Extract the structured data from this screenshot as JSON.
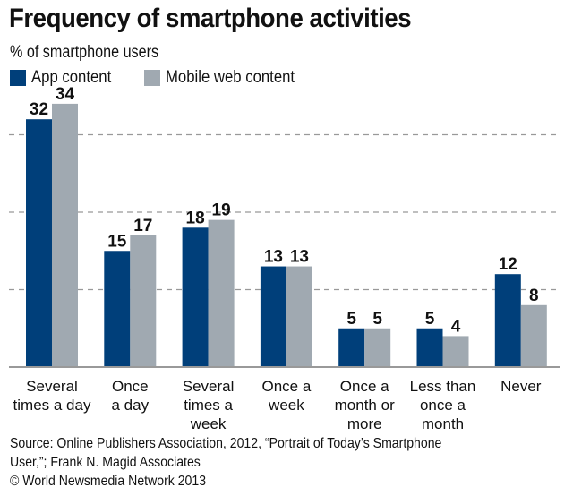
{
  "chart_data": {
    "type": "bar",
    "title": "Frequency of smartphone activities",
    "subtitle": "% of smartphone users",
    "xlabel": "",
    "ylabel": "% of smartphone users",
    "ylim": [
      0,
      40
    ],
    "gridlines": [
      10,
      20,
      30
    ],
    "grid": true,
    "legend_position": "top-left",
    "categories": [
      [
        "Several",
        "times a day"
      ],
      [
        "Once",
        "a day"
      ],
      [
        "Several",
        "times a",
        "week"
      ],
      [
        "Once a",
        "week"
      ],
      [
        "Once a",
        "month or",
        "more"
      ],
      [
        "Less than",
        "once a",
        "month"
      ],
      [
        "Never"
      ]
    ],
    "series": [
      {
        "name": "App content",
        "color": "#003f7a",
        "values": [
          32,
          15,
          18,
          13,
          5,
          5,
          12
        ]
      },
      {
        "name": "Mobile web content",
        "color": "#a0a9b1",
        "values": [
          34,
          17,
          19,
          13,
          5,
          4,
          8
        ]
      }
    ]
  },
  "footer": {
    "source_line1": "Source: Online Publishers Association, 2012, “Portrait of Today’s Smartphone",
    "source_line2": "User,”; Frank N. Magid Associates",
    "copyright": "© World Newsmedia Network 2013"
  }
}
